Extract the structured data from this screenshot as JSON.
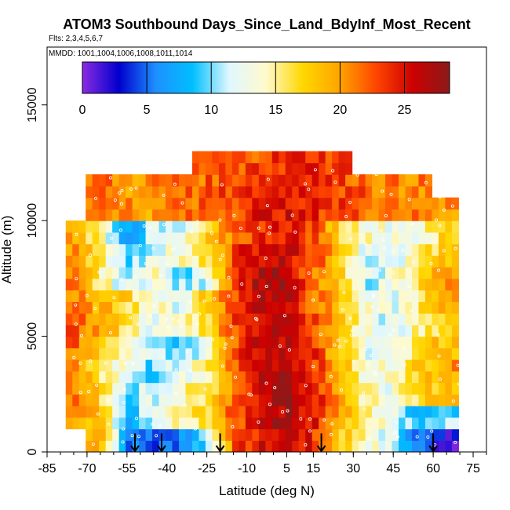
{
  "chart_data": {
    "type": "heatmap",
    "title": "ATOM3 Southbound Days_Since_Land_BdyInf_Most_Recent",
    "subtitle": "Flts: 2,3,4,5,6,7",
    "annotation": "MMDD: 1001,1004,1006,1008,1011,1014",
    "xlabel": "Latitude (deg N)",
    "ylabel": "Altitude (m)",
    "xlim": [
      -85,
      80
    ],
    "ylim": [
      0,
      17500
    ],
    "x_ticks": [
      -85,
      -70,
      -55,
      -40,
      -25,
      -10,
      5,
      15,
      30,
      45,
      60,
      75
    ],
    "x_tick_labels": [
      "-85",
      "-70",
      "-55",
      "-40",
      "-25",
      "-10",
      "5",
      "15",
      "30",
      "45",
      "60",
      "75"
    ],
    "y_ticks": [
      0,
      5000,
      10000,
      15000
    ],
    "y_tick_labels": [
      "0",
      "5000",
      "10000",
      "15000"
    ],
    "colorbar": {
      "min": 0,
      "max": 28.5,
      "ticks": [
        0,
        5,
        10,
        15,
        20,
        25
      ],
      "tick_labels": [
        "0",
        "5",
        "10",
        "15",
        "20",
        "25"
      ],
      "colors": [
        "#8a2be2",
        "#0000cd",
        "#1e90ff",
        "#00bfff",
        "#e0f7ff",
        "#fffacd",
        "#ffd700",
        "#ffa500",
        "#ff4500",
        "#cc0000",
        "#8b1a1a"
      ]
    },
    "arrows_latitude": [
      -52,
      -42,
      -20,
      18,
      60
    ],
    "profile": {
      "latitudes": [
        -85,
        -75,
        -65,
        -55,
        -45,
        -35,
        -25,
        -15,
        -5,
        5,
        15,
        25,
        35,
        45,
        55,
        65,
        75
      ],
      "altitudes": [
        500,
        1500,
        2500,
        3500,
        4500,
        5500,
        6500,
        7500,
        8500,
        9500,
        10500,
        11500,
        12500
      ],
      "values": [
        [
          null,
          null,
          20,
          6,
          4,
          6,
          10,
          22,
          25,
          26,
          24,
          18,
          14,
          11,
          5,
          2,
          null
        ],
        [
          null,
          21,
          18,
          8,
          12,
          15,
          17,
          22,
          26,
          27,
          25,
          20,
          15,
          12,
          8,
          10,
          null
        ],
        [
          null,
          22,
          17,
          10,
          12,
          14,
          16,
          21,
          26,
          28,
          25,
          20,
          14,
          13,
          17,
          19,
          null
        ],
        [
          null,
          21,
          16,
          13,
          9,
          12,
          15,
          22,
          26,
          27,
          24,
          19,
          13,
          14,
          18,
          20,
          null
        ],
        [
          null,
          22,
          18,
          15,
          11,
          9,
          14,
          22,
          26,
          26,
          24,
          18,
          12,
          12,
          16,
          19,
          null
        ],
        [
          null,
          22,
          20,
          16,
          12,
          13,
          17,
          23,
          26,
          26,
          23,
          19,
          13,
          11,
          15,
          18,
          null
        ],
        [
          null,
          21,
          19,
          17,
          14,
          12,
          18,
          23,
          27,
          26,
          22,
          18,
          13,
          12,
          16,
          19,
          null
        ],
        [
          null,
          21,
          15,
          11,
          14,
          10,
          12,
          24,
          27,
          27,
          21,
          17,
          11,
          13,
          17,
          20,
          null
        ],
        [
          null,
          20,
          16,
          9,
          12,
          14,
          16,
          23,
          26,
          26,
          23,
          18,
          12,
          11,
          15,
          18,
          null
        ],
        [
          null,
          20,
          15,
          7,
          11,
          12,
          17,
          21,
          24,
          25,
          23,
          17,
          14,
          13,
          14,
          17,
          null
        ],
        [
          null,
          null,
          22,
          21,
          20,
          21,
          22,
          23,
          25,
          25,
          24,
          23,
          22,
          22,
          21,
          20,
          null
        ],
        [
          null,
          null,
          22,
          20,
          21,
          22,
          22,
          23,
          24,
          25,
          25,
          23,
          22,
          21,
          21,
          null,
          null
        ],
        [
          null,
          null,
          null,
          null,
          null,
          null,
          22,
          22,
          23,
          24,
          24,
          23,
          null,
          null,
          null,
          null,
          null
        ]
      ]
    }
  }
}
